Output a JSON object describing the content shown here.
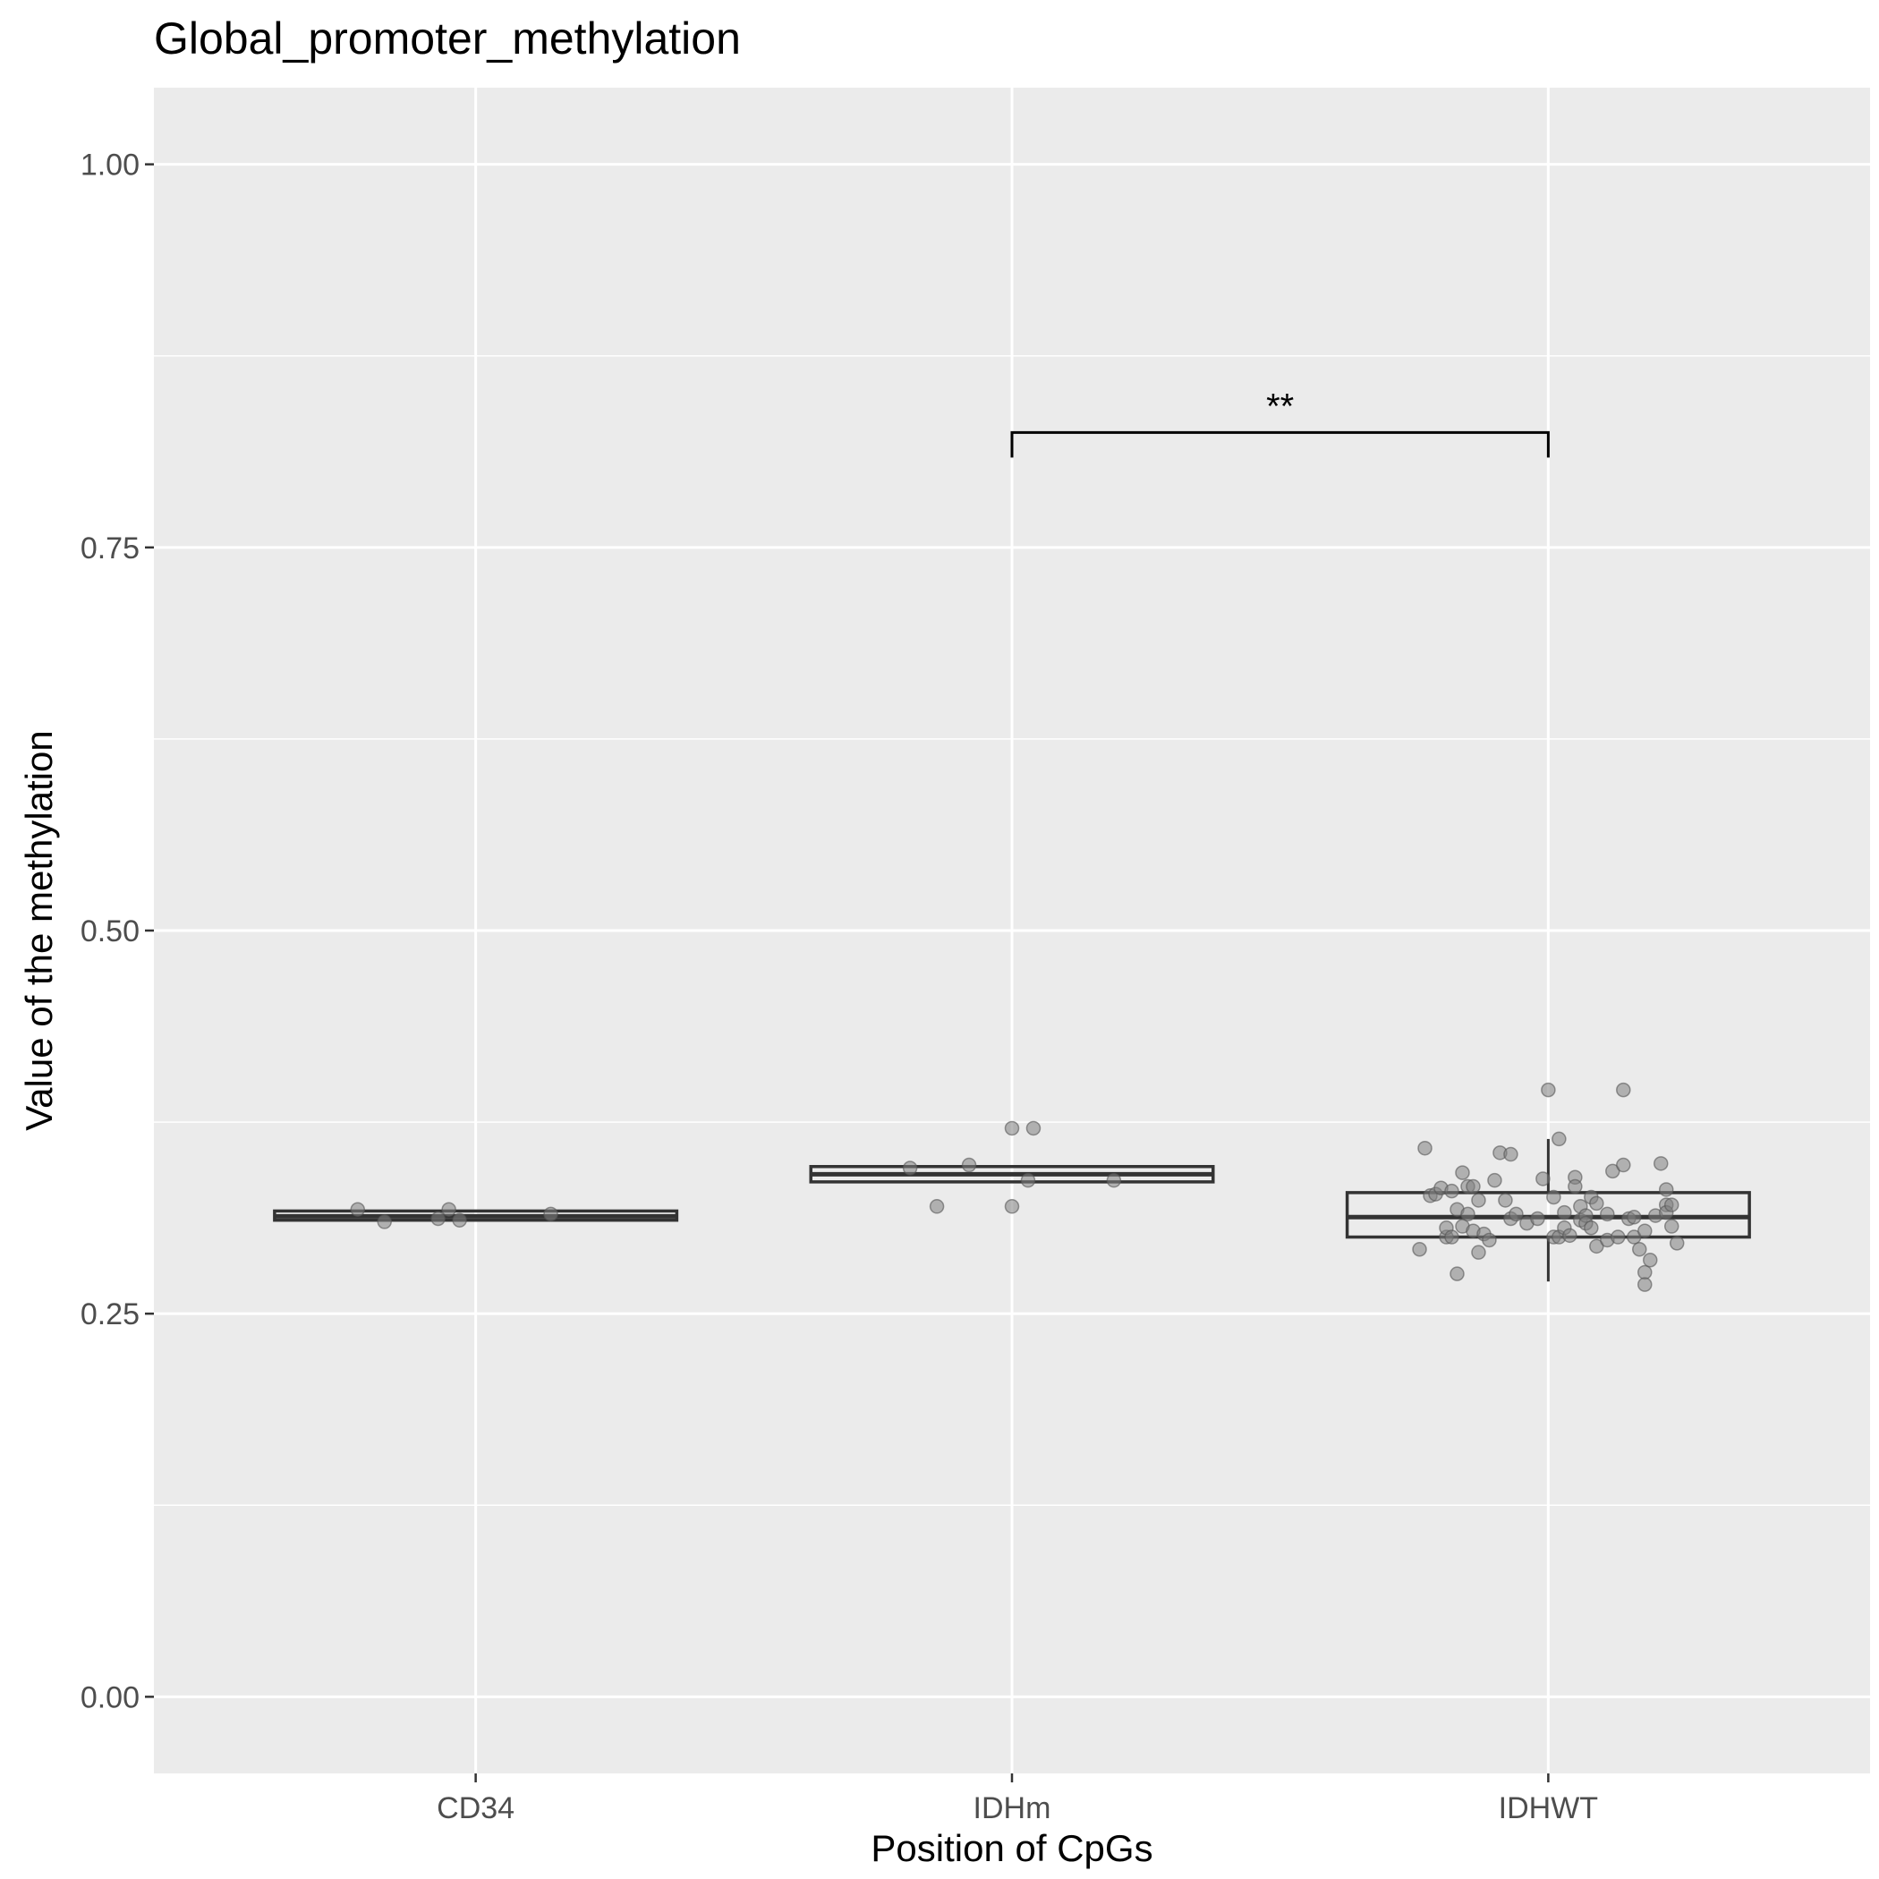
{
  "chart_data": {
    "type": "box",
    "title": "Global_promoter_methylation",
    "xlabel": "Position of CpGs",
    "ylabel": "Value of the methylation",
    "ylim": [
      -0.05,
      1.05
    ],
    "yticks": [
      0.0,
      0.25,
      0.5,
      0.75,
      1.0
    ],
    "ytick_labels": [
      "0.00",
      "0.25",
      "0.50",
      "0.75",
      "1.00"
    ],
    "grid": true,
    "colors": {
      "panel": "#ebebeb",
      "grid": "#ffffff",
      "box": "#333333",
      "point": "#808080"
    },
    "categories": [
      "CD34",
      "IDHm",
      "IDHWT"
    ],
    "boxes": [
      {
        "category": "CD34",
        "q1": 0.311,
        "median": 0.3135,
        "q3": 0.317,
        "whisker_low": 0.311,
        "whisker_high": 0.317,
        "points": [
          {
            "dx": -0.22,
            "y": 0.318
          },
          {
            "dx": -0.17,
            "y": 0.31
          },
          {
            "dx": -0.07,
            "y": 0.312
          },
          {
            "dx": -0.05,
            "y": 0.318
          },
          {
            "dx": -0.03,
            "y": 0.311
          },
          {
            "dx": 0.14,
            "y": 0.315
          }
        ]
      },
      {
        "category": "IDHm",
        "q1": 0.336,
        "median": 0.341,
        "q3": 0.346,
        "whisker_low": 0.336,
        "whisker_high": 0.346,
        "points": [
          {
            "dx": -0.19,
            "y": 0.345
          },
          {
            "dx": -0.14,
            "y": 0.32
          },
          {
            "dx": -0.08,
            "y": 0.347
          },
          {
            "dx": 0.0,
            "y": 0.371
          },
          {
            "dx": 0.0,
            "y": 0.32
          },
          {
            "dx": 0.03,
            "y": 0.337
          },
          {
            "dx": 0.04,
            "y": 0.371
          },
          {
            "dx": 0.19,
            "y": 0.337
          }
        ]
      },
      {
        "category": "IDHWT",
        "q1": 0.3,
        "median": 0.313,
        "q3": 0.329,
        "whisker_low": 0.271,
        "whisker_high": 0.364,
        "points": [
          {
            "dx": -0.24,
            "y": 0.292
          },
          {
            "dx": -0.23,
            "y": 0.358
          },
          {
            "dx": -0.22,
            "y": 0.327
          },
          {
            "dx": -0.21,
            "y": 0.328
          },
          {
            "dx": -0.2,
            "y": 0.332
          },
          {
            "dx": -0.19,
            "y": 0.3
          },
          {
            "dx": -0.19,
            "y": 0.306
          },
          {
            "dx": -0.18,
            "y": 0.3
          },
          {
            "dx": -0.18,
            "y": 0.33
          },
          {
            "dx": -0.17,
            "y": 0.318
          },
          {
            "dx": -0.17,
            "y": 0.276
          },
          {
            "dx": -0.16,
            "y": 0.307
          },
          {
            "dx": -0.16,
            "y": 0.342
          },
          {
            "dx": -0.15,
            "y": 0.315
          },
          {
            "dx": -0.15,
            "y": 0.333
          },
          {
            "dx": -0.14,
            "y": 0.333
          },
          {
            "dx": -0.14,
            "y": 0.304
          },
          {
            "dx": -0.13,
            "y": 0.324
          },
          {
            "dx": -0.13,
            "y": 0.29
          },
          {
            "dx": -0.12,
            "y": 0.302
          },
          {
            "dx": -0.11,
            "y": 0.298
          },
          {
            "dx": -0.1,
            "y": 0.337
          },
          {
            "dx": -0.09,
            "y": 0.355
          },
          {
            "dx": -0.08,
            "y": 0.324
          },
          {
            "dx": -0.07,
            "y": 0.312
          },
          {
            "dx": -0.07,
            "y": 0.354
          },
          {
            "dx": -0.06,
            "y": 0.315
          },
          {
            "dx": -0.04,
            "y": 0.309
          },
          {
            "dx": -0.02,
            "y": 0.312
          },
          {
            "dx": -0.01,
            "y": 0.338
          },
          {
            "dx": 0.0,
            "y": 0.396
          },
          {
            "dx": 0.01,
            "y": 0.3
          },
          {
            "dx": 0.01,
            "y": 0.326
          },
          {
            "dx": 0.02,
            "y": 0.3
          },
          {
            "dx": 0.02,
            "y": 0.364
          },
          {
            "dx": 0.03,
            "y": 0.316
          },
          {
            "dx": 0.03,
            "y": 0.306
          },
          {
            "dx": 0.04,
            "y": 0.301
          },
          {
            "dx": 0.05,
            "y": 0.339
          },
          {
            "dx": 0.05,
            "y": 0.333
          },
          {
            "dx": 0.06,
            "y": 0.311
          },
          {
            "dx": 0.06,
            "y": 0.32
          },
          {
            "dx": 0.07,
            "y": 0.314
          },
          {
            "dx": 0.07,
            "y": 0.309
          },
          {
            "dx": 0.08,
            "y": 0.326
          },
          {
            "dx": 0.08,
            "y": 0.306
          },
          {
            "dx": 0.09,
            "y": 0.294
          },
          {
            "dx": 0.09,
            "y": 0.322
          },
          {
            "dx": 0.11,
            "y": 0.298
          },
          {
            "dx": 0.11,
            "y": 0.315
          },
          {
            "dx": 0.12,
            "y": 0.343
          },
          {
            "dx": 0.13,
            "y": 0.3
          },
          {
            "dx": 0.14,
            "y": 0.347
          },
          {
            "dx": 0.14,
            "y": 0.396
          },
          {
            "dx": 0.15,
            "y": 0.312
          },
          {
            "dx": 0.16,
            "y": 0.3
          },
          {
            "dx": 0.16,
            "y": 0.313
          },
          {
            "dx": 0.17,
            "y": 0.292
          },
          {
            "dx": 0.18,
            "y": 0.277
          },
          {
            "dx": 0.18,
            "y": 0.269
          },
          {
            "dx": 0.18,
            "y": 0.304
          },
          {
            "dx": 0.19,
            "y": 0.285
          },
          {
            "dx": 0.2,
            "y": 0.314
          },
          {
            "dx": 0.21,
            "y": 0.348
          },
          {
            "dx": 0.22,
            "y": 0.321
          },
          {
            "dx": 0.22,
            "y": 0.331
          },
          {
            "dx": 0.22,
            "y": 0.316
          },
          {
            "dx": 0.23,
            "y": 0.321
          },
          {
            "dx": 0.23,
            "y": 0.307
          },
          {
            "dx": 0.24,
            "y": 0.296
          }
        ]
      }
    ],
    "annotations": [
      {
        "type": "significance",
        "from": "IDHm",
        "to": "IDHWT",
        "y": 0.825,
        "label": "**"
      }
    ]
  }
}
